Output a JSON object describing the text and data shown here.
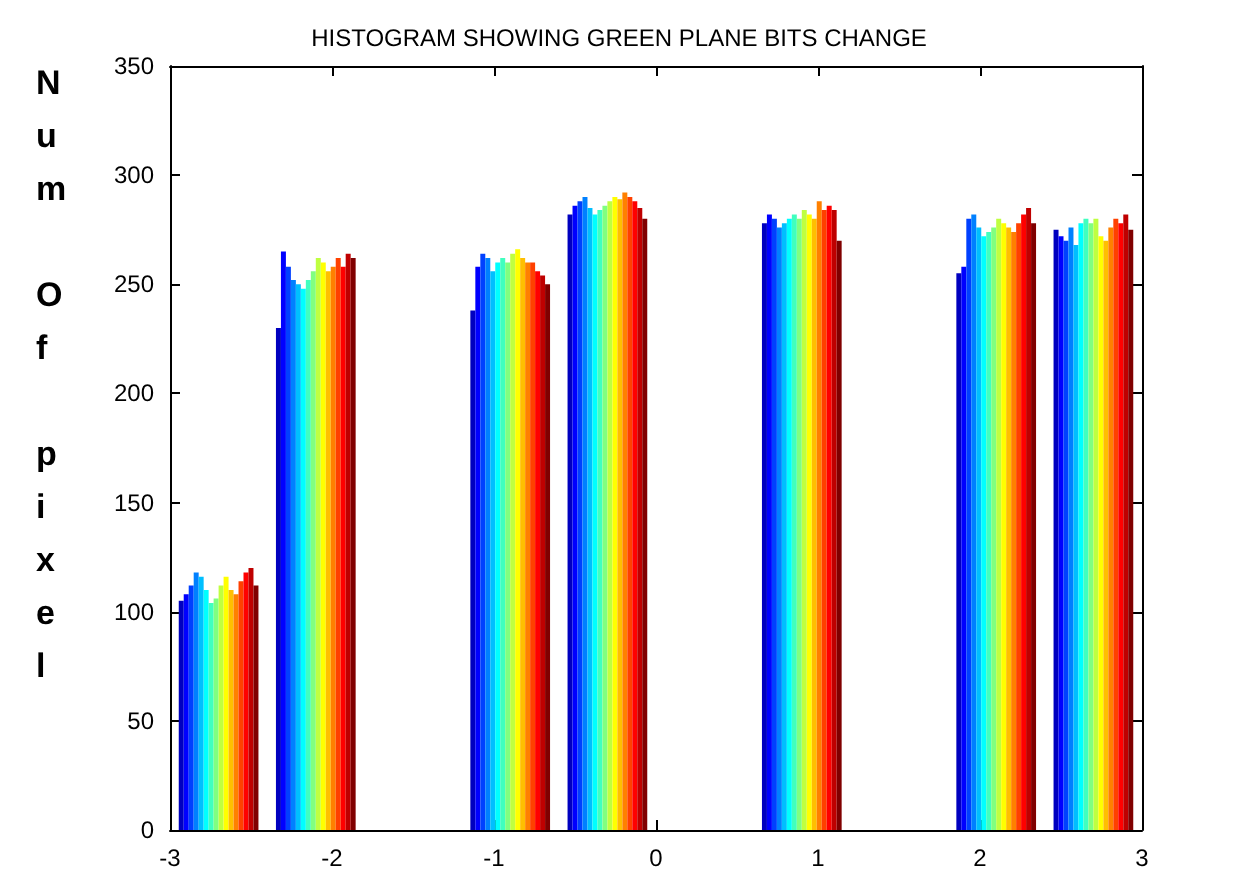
{
  "chart_data": {
    "type": "bar",
    "title": "HISTOGRAM SHOWING GREEN PLANE BITS CHANGE",
    "ylabel": "Num Of pixel",
    "x": [
      -2.7,
      -2.1,
      -0.9,
      -0.3,
      0.9,
      2.1,
      2.7
    ],
    "xlim": [
      -3,
      3
    ],
    "xticks": [
      -3,
      -2,
      -1,
      0,
      1,
      2,
      3
    ],
    "ylim": [
      0,
      350
    ],
    "yticks": [
      0,
      50,
      100,
      150,
      200,
      250,
      300,
      350
    ],
    "grid": false,
    "series": [
      {
        "color": "#0000bf",
        "values": [
          105,
          230,
          238,
          282,
          278,
          255,
          275
        ]
      },
      {
        "color": "#0000ff",
        "values": [
          108,
          265,
          258,
          286,
          282,
          258,
          272
        ]
      },
      {
        "color": "#0040ff",
        "values": [
          112,
          258,
          264,
          288,
          280,
          280,
          270
        ]
      },
      {
        "color": "#0080ff",
        "values": [
          118,
          252,
          262,
          290,
          276,
          282,
          276
        ]
      },
      {
        "color": "#00bfff",
        "values": [
          116,
          250,
          256,
          285,
          278,
          276,
          268
        ]
      },
      {
        "color": "#00ffff",
        "values": [
          110,
          248,
          260,
          282,
          280,
          272,
          278
        ]
      },
      {
        "color": "#40ffbf",
        "values": [
          104,
          252,
          262,
          284,
          282,
          274,
          280
        ]
      },
      {
        "color": "#80ff80",
        "values": [
          106,
          256,
          260,
          286,
          280,
          276,
          278
        ]
      },
      {
        "color": "#bfff40",
        "values": [
          112,
          262,
          264,
          288,
          284,
          280,
          280
        ]
      },
      {
        "color": "#ffff00",
        "values": [
          116,
          260,
          266,
          290,
          282,
          278,
          272
        ]
      },
      {
        "color": "#ffbf00",
        "values": [
          110,
          256,
          262,
          289,
          280,
          276,
          270
        ]
      },
      {
        "color": "#ff8000",
        "values": [
          108,
          258,
          260,
          292,
          288,
          274,
          276
        ]
      },
      {
        "color": "#ff4000",
        "values": [
          114,
          262,
          260,
          290,
          284,
          278,
          280
        ]
      },
      {
        "color": "#ff0000",
        "values": [
          118,
          258,
          256,
          288,
          286,
          282,
          278
        ]
      },
      {
        "color": "#bf0000",
        "values": [
          120,
          264,
          254,
          285,
          284,
          285,
          282
        ]
      },
      {
        "color": "#800000",
        "values": [
          112,
          262,
          250,
          280,
          270,
          278,
          275
        ]
      }
    ]
  }
}
